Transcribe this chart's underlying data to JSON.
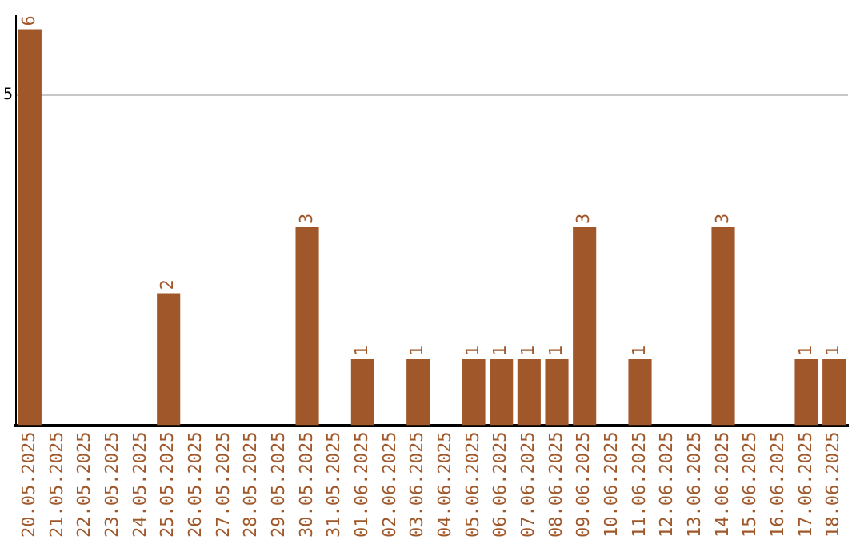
{
  "chart_data": {
    "type": "bar",
    "categories": [
      "20.05.2025",
      "21.05.2025",
      "22.05.2025",
      "23.05.2025",
      "24.05.2025",
      "25.05.2025",
      "26.05.2025",
      "27.05.2025",
      "28.05.2025",
      "29.05.2025",
      "30.05.2025",
      "31.05.2025",
      "01.06.2025",
      "02.06.2025",
      "03.06.2025",
      "04.06.2025",
      "05.06.2025",
      "06.06.2025",
      "07.06.2025",
      "08.06.2025",
      "09.06.2025",
      "10.06.2025",
      "11.06.2025",
      "12.06.2025",
      "13.06.2025",
      "14.06.2025",
      "15.06.2025",
      "16.06.2025",
      "17.06.2025",
      "18.06.2025"
    ],
    "values": [
      6,
      0,
      0,
      0,
      0,
      2,
      0,
      0,
      0,
      0,
      3,
      0,
      1,
      0,
      1,
      0,
      1,
      1,
      1,
      1,
      3,
      0,
      1,
      0,
      0,
      3,
      0,
      0,
      1,
      1
    ],
    "value_labels": [
      "6",
      null,
      null,
      null,
      null,
      "2",
      null,
      null,
      null,
      null,
      "3",
      null,
      "1",
      null,
      "1",
      null,
      "1",
      "1",
      "1",
      "1",
      "3",
      null,
      "1",
      null,
      null,
      "3",
      null,
      null,
      "1",
      "1"
    ],
    "color": "#a0582a",
    "ylim": [
      0,
      6.2
    ],
    "yticks": [
      5
    ],
    "grid": "y",
    "legend": false
  }
}
